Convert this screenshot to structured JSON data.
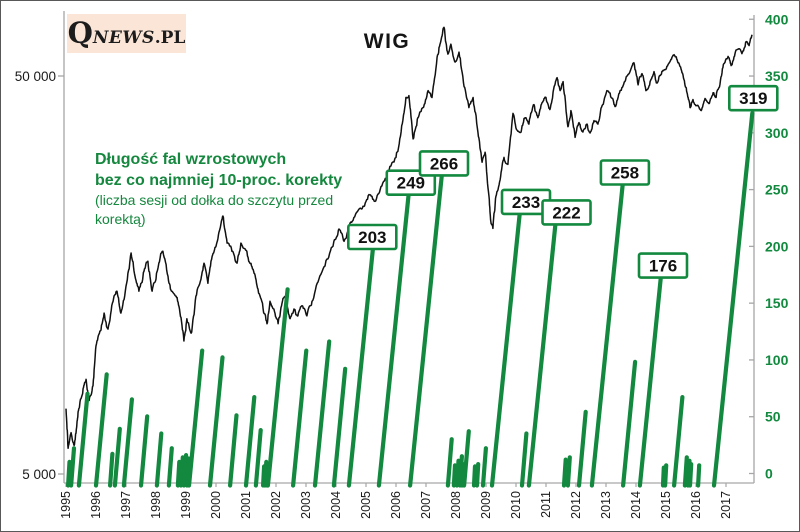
{
  "branding": {
    "q": "Q",
    "news": "NEWS",
    "pl": ".PL"
  },
  "title": "WIG",
  "annotation": {
    "line1": "Długość fal wzrostowych",
    "line2": "bez co najmniej 10-proc. korekty",
    "line3": "(liczba sesji od dołka do szczytu przed",
    "line4": "korektą)"
  },
  "colors": {
    "green": "#12893f",
    "wig_line": "#111111",
    "axis_gray": "#a6a6a6",
    "logo_bg": "#fbe5d6",
    "label_text": "#111111"
  },
  "chart_data": {
    "type": "line+bar-combo",
    "title": "WIG",
    "left_axis": {
      "scale": "log",
      "ticks": [
        {
          "label": "50 000",
          "value": 50000
        },
        {
          "label": "5 000",
          "value": 5000
        }
      ]
    },
    "right_axis": {
      "min": 0,
      "max": 400,
      "step": 50,
      "tick_labels": [
        "0",
        "50",
        "100",
        "150",
        "200",
        "250",
        "300",
        "350",
        "400"
      ]
    },
    "x_axis": {
      "years": [
        "1995",
        "1996",
        "1997",
        "1998",
        "1999",
        "2000",
        "2001",
        "2002",
        "2003",
        "2004",
        "2005",
        "2006",
        "2007",
        "2008",
        "2009",
        "2010",
        "2011",
        "2012",
        "2013",
        "2014",
        "2015",
        "2016",
        "2017"
      ]
    },
    "wig_series": {
      "name": "WIG",
      "points": [
        [
          1995.0,
          7300
        ],
        [
          1995.07,
          5800
        ],
        [
          1995.17,
          6350
        ],
        [
          1995.27,
          5900
        ],
        [
          1995.37,
          6800
        ],
        [
          1995.43,
          7300
        ],
        [
          1995.57,
          8200
        ],
        [
          1995.67,
          8650
        ],
        [
          1995.77,
          7650
        ],
        [
          1995.9,
          8330
        ],
        [
          1996.0,
          10500
        ],
        [
          1996.13,
          11430
        ],
        [
          1996.27,
          12680
        ],
        [
          1996.4,
          11560
        ],
        [
          1996.57,
          13580
        ],
        [
          1996.7,
          14400
        ],
        [
          1996.83,
          12680
        ],
        [
          1997.0,
          14820
        ],
        [
          1997.17,
          17960
        ],
        [
          1997.3,
          15700
        ],
        [
          1997.43,
          14400
        ],
        [
          1997.6,
          16160
        ],
        [
          1997.73,
          17130
        ],
        [
          1997.87,
          14400
        ],
        [
          1998.0,
          15430
        ],
        [
          1998.13,
          17330
        ],
        [
          1998.23,
          18130
        ],
        [
          1998.4,
          15700
        ],
        [
          1998.53,
          14400
        ],
        [
          1998.67,
          13990
        ],
        [
          1998.8,
          12680
        ],
        [
          1998.93,
          10790
        ],
        [
          1999.03,
          12280
        ],
        [
          1999.17,
          11290
        ],
        [
          1999.33,
          13990
        ],
        [
          1999.5,
          15430
        ],
        [
          1999.6,
          16930
        ],
        [
          1999.73,
          15070
        ],
        [
          1999.87,
          17600
        ],
        [
          2000.0,
          18670
        ],
        [
          2000.13,
          20630
        ],
        [
          2000.23,
          22250
        ],
        [
          2000.37,
          19020
        ],
        [
          2000.53,
          18130
        ],
        [
          2000.7,
          16930
        ],
        [
          2000.83,
          19020
        ],
        [
          2000.97,
          18390
        ],
        [
          2001.13,
          16930
        ],
        [
          2001.27,
          15970
        ],
        [
          2001.4,
          14570
        ],
        [
          2001.57,
          13000
        ],
        [
          2001.7,
          11930
        ],
        [
          2001.8,
          13580
        ],
        [
          2001.93,
          12990
        ],
        [
          2002.07,
          11930
        ],
        [
          2002.2,
          13420
        ],
        [
          2002.33,
          13990
        ],
        [
          2002.47,
          12280
        ],
        [
          2002.6,
          12990
        ],
        [
          2002.73,
          12480
        ],
        [
          2002.87,
          13230
        ],
        [
          2003.03,
          12480
        ],
        [
          2003.2,
          13580
        ],
        [
          2003.43,
          15430
        ],
        [
          2003.7,
          17330
        ],
        [
          2003.93,
          19210
        ],
        [
          2004.1,
          20630
        ],
        [
          2004.27,
          19210
        ],
        [
          2004.47,
          21360
        ],
        [
          2004.67,
          22620
        ],
        [
          2004.9,
          23540
        ],
        [
          2005.1,
          25190
        ],
        [
          2005.3,
          24200
        ],
        [
          2005.5,
          26370
        ],
        [
          2005.73,
          28700
        ],
        [
          2006.0,
          31230
        ],
        [
          2006.17,
          36160
        ],
        [
          2006.33,
          44140
        ],
        [
          2006.43,
          44650
        ],
        [
          2006.57,
          34740
        ],
        [
          2006.73,
          39280
        ],
        [
          2006.9,
          41640
        ],
        [
          2007.07,
          45940
        ],
        [
          2007.2,
          44140
        ],
        [
          2007.37,
          55780
        ],
        [
          2007.5,
          61480
        ],
        [
          2007.6,
          66270
        ],
        [
          2007.73,
          56750
        ],
        [
          2007.83,
          60100
        ],
        [
          2007.97,
          54180
        ],
        [
          2008.1,
          57400
        ],
        [
          2008.27,
          46990
        ],
        [
          2008.43,
          41640
        ],
        [
          2008.57,
          44140
        ],
        [
          2008.73,
          36160
        ],
        [
          2008.87,
          30340
        ],
        [
          2008.97,
          32150
        ],
        [
          2009.1,
          24910
        ],
        [
          2009.17,
          21290
        ],
        [
          2009.23,
          20700
        ],
        [
          2009.33,
          24910
        ],
        [
          2009.47,
          27410
        ],
        [
          2009.6,
          31230
        ],
        [
          2009.73,
          29990
        ],
        [
          2009.9,
          40280
        ],
        [
          2010.03,
          36580
        ],
        [
          2010.17,
          36160
        ],
        [
          2010.3,
          39280
        ],
        [
          2010.43,
          37860
        ],
        [
          2010.6,
          42370
        ],
        [
          2010.73,
          39280
        ],
        [
          2010.87,
          42860
        ],
        [
          2011.0,
          44140
        ],
        [
          2011.13,
          41160
        ],
        [
          2011.27,
          46990
        ],
        [
          2011.37,
          49520
        ],
        [
          2011.47,
          45940
        ],
        [
          2011.57,
          48400
        ],
        [
          2011.73,
          37280
        ],
        [
          2011.83,
          40930
        ],
        [
          2011.97,
          35050
        ],
        [
          2012.1,
          38190
        ],
        [
          2012.23,
          36160
        ],
        [
          2012.37,
          37860
        ],
        [
          2012.47,
          35960
        ],
        [
          2012.6,
          38630
        ],
        [
          2012.73,
          37860
        ],
        [
          2012.87,
          42120
        ],
        [
          2013.03,
          45940
        ],
        [
          2013.17,
          44140
        ],
        [
          2013.3,
          41880
        ],
        [
          2013.47,
          45940
        ],
        [
          2013.63,
          48400
        ],
        [
          2013.8,
          51290
        ],
        [
          2013.93,
          54000
        ],
        [
          2014.07,
          47480
        ],
        [
          2014.2,
          50700
        ],
        [
          2014.33,
          45940
        ],
        [
          2014.47,
          48400
        ],
        [
          2014.6,
          51290
        ],
        [
          2014.7,
          48000
        ],
        [
          2014.83,
          50400
        ],
        [
          2014.97,
          51890
        ],
        [
          2015.13,
          54310
        ],
        [
          2015.27,
          56570
        ],
        [
          2015.37,
          54940
        ],
        [
          2015.47,
          52790
        ],
        [
          2015.6,
          48960
        ],
        [
          2015.7,
          45400
        ],
        [
          2015.8,
          41640
        ],
        [
          2015.9,
          43640
        ],
        [
          2016.03,
          42120
        ],
        [
          2016.17,
          40930
        ],
        [
          2016.3,
          43890
        ],
        [
          2016.43,
          42620
        ],
        [
          2016.57,
          45400
        ],
        [
          2016.67,
          44140
        ],
        [
          2016.8,
          47700
        ],
        [
          2016.93,
          53690
        ],
        [
          2017.07,
          56000
        ],
        [
          2017.17,
          53090
        ],
        [
          2017.3,
          56900
        ],
        [
          2017.43,
          58570
        ],
        [
          2017.53,
          56900
        ],
        [
          2017.67,
          61000
        ],
        [
          2017.77,
          59600
        ],
        [
          2017.87,
          63500
        ]
      ]
    },
    "waves": [
      {
        "start": 1995.07,
        "sessions": 12,
        "labeled": false
      },
      {
        "start": 1995.17,
        "sessions": 24,
        "labeled": false
      },
      {
        "start": 1995.43,
        "sessions": 72,
        "labeled": false
      },
      {
        "start": 1996.0,
        "sessions": 89,
        "labeled": false
      },
      {
        "start": 1996.47,
        "sessions": 19,
        "labeled": false
      },
      {
        "start": 1996.63,
        "sessions": 41,
        "labeled": false
      },
      {
        "start": 1996.93,
        "sessions": 67,
        "labeled": false
      },
      {
        "start": 1997.5,
        "sessions": 52,
        "labeled": false
      },
      {
        "start": 1998.03,
        "sessions": 37,
        "labeled": false
      },
      {
        "start": 1998.43,
        "sessions": 24,
        "labeled": false
      },
      {
        "start": 1998.73,
        "sessions": 12,
        "labeled": false
      },
      {
        "start": 1998.83,
        "sessions": 16,
        "labeled": false
      },
      {
        "start": 1998.93,
        "sessions": 18,
        "labeled": false
      },
      {
        "start": 1999.03,
        "sessions": 15,
        "labeled": false
      },
      {
        "start": 1999.1,
        "sessions": 110,
        "labeled": false
      },
      {
        "start": 1999.8,
        "sessions": 104,
        "labeled": false
      },
      {
        "start": 2000.47,
        "sessions": 53,
        "labeled": false
      },
      {
        "start": 2001.0,
        "sessions": 69,
        "labeled": false
      },
      {
        "start": 2001.33,
        "sessions": 40,
        "labeled": false
      },
      {
        "start": 2001.57,
        "sessions": 8,
        "labeled": false
      },
      {
        "start": 2001.63,
        "sessions": 12,
        "labeled": false
      },
      {
        "start": 2001.7,
        "sessions": 10,
        "labeled": false
      },
      {
        "start": 2001.73,
        "sessions": 164,
        "labeled": false
      },
      {
        "start": 2002.57,
        "sessions": 110,
        "labeled": false
      },
      {
        "start": 2003.3,
        "sessions": 118,
        "labeled": false
      },
      {
        "start": 2003.93,
        "sessions": 94,
        "labeled": false
      },
      {
        "start": 2004.43,
        "sessions": 203,
        "labeled": true
      },
      {
        "start": 2005.43,
        "sessions": 249,
        "labeled": true
      },
      {
        "start": 2006.47,
        "sessions": 266,
        "labeled": true
      },
      {
        "start": 2007.73,
        "sessions": 32,
        "labeled": false
      },
      {
        "start": 2007.93,
        "sessions": 9,
        "labeled": false
      },
      {
        "start": 2008.03,
        "sessions": 13,
        "labeled": false
      },
      {
        "start": 2008.13,
        "sessions": 17,
        "labeled": false
      },
      {
        "start": 2008.2,
        "sessions": 10,
        "labeled": false
      },
      {
        "start": 2008.27,
        "sessions": 39,
        "labeled": false
      },
      {
        "start": 2008.6,
        "sessions": 8,
        "labeled": false
      },
      {
        "start": 2008.7,
        "sessions": 10,
        "labeled": false
      },
      {
        "start": 2008.9,
        "sessions": 24,
        "labeled": false
      },
      {
        "start": 2009.2,
        "sessions": 233,
        "labeled": true
      },
      {
        "start": 2010.2,
        "sessions": 37,
        "labeled": false
      },
      {
        "start": 2010.43,
        "sessions": 222,
        "labeled": true
      },
      {
        "start": 2011.6,
        "sessions": 14,
        "labeled": false
      },
      {
        "start": 2011.73,
        "sessions": 16,
        "labeled": false
      },
      {
        "start": 2012.1,
        "sessions": 56,
        "labeled": false
      },
      {
        "start": 2012.53,
        "sessions": 258,
        "labeled": true
      },
      {
        "start": 2013.57,
        "sessions": 100,
        "labeled": false
      },
      {
        "start": 2014.13,
        "sessions": 176,
        "labeled": true
      },
      {
        "start": 2014.9,
        "sessions": 7,
        "labeled": false
      },
      {
        "start": 2014.97,
        "sessions": 9,
        "labeled": false
      },
      {
        "start": 2015.27,
        "sessions": 69,
        "labeled": false
      },
      {
        "start": 2015.63,
        "sessions": 16,
        "labeled": false
      },
      {
        "start": 2015.73,
        "sessions": 13,
        "labeled": false
      },
      {
        "start": 2015.8,
        "sessions": 10,
        "labeled": false
      },
      {
        "start": 2016.07,
        "sessions": 9,
        "labeled": false
      },
      {
        "start": 2016.6,
        "sessions": 319,
        "labeled": true
      }
    ]
  }
}
